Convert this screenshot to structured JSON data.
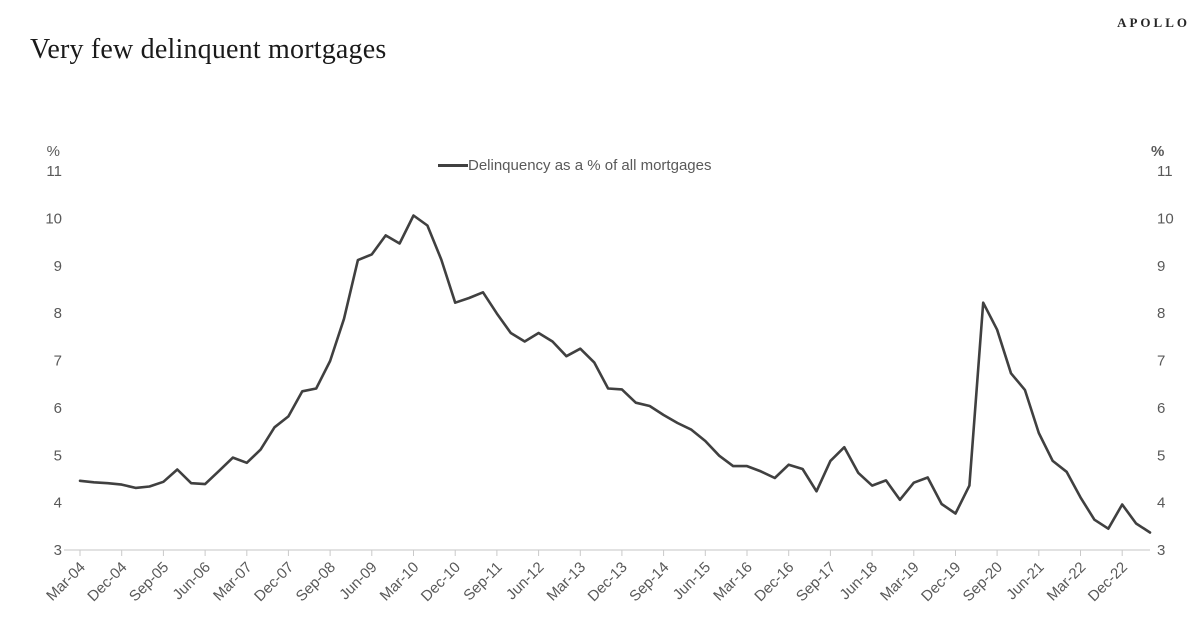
{
  "branding": {
    "logo_text": "APOLLO"
  },
  "header": {
    "title": "Very few delinquent mortgages"
  },
  "legend": {
    "label": "Delinquency as a % of all mortgages"
  },
  "axes": {
    "left_unit_label": "%",
    "right_unit_label": "%",
    "y_ticks": [
      "11",
      "10",
      "9",
      "8",
      "7",
      "6",
      "5",
      "4",
      "3"
    ],
    "x_tick_labels": [
      "Mar-04",
      "Dec-04",
      "Sep-05",
      "Jun-06",
      "Mar-07",
      "Dec-07",
      "Sep-08",
      "Jun-09",
      "Mar-10",
      "Dec-10",
      "Sep-11",
      "Jun-12",
      "Mar-13",
      "Dec-13",
      "Sep-14",
      "Jun-15",
      "Mar-16",
      "Dec-16",
      "Sep-17",
      "Jun-18",
      "Mar-19",
      "Dec-19",
      "Sep-20",
      "Jun-21",
      "Mar-22",
      "Dec-22"
    ],
    "x_tick_every_n_points": 3
  },
  "chart_data": {
    "type": "line",
    "title": "Very few delinquent mortgages",
    "xlabel": "",
    "ylabel": "%",
    "ylim": [
      3,
      11
    ],
    "grid": false,
    "legend_position": "top-center",
    "frequency": "quarterly",
    "start_period": "2004-Q1",
    "end_period": "2023-Q2",
    "series": [
      {
        "name": "Delinquency as a % of all mortgages",
        "color": "#404040",
        "values": [
          4.46,
          4.43,
          4.41,
          4.38,
          4.31,
          4.34,
          4.44,
          4.7,
          4.41,
          4.39,
          4.67,
          4.95,
          4.84,
          5.12,
          5.59,
          5.82,
          6.35,
          6.41,
          6.99,
          7.88,
          9.12,
          9.24,
          9.64,
          9.47,
          10.06,
          9.85,
          9.13,
          8.22,
          8.32,
          8.44,
          7.99,
          7.58,
          7.4,
          7.58,
          7.4,
          7.09,
          7.25,
          6.96,
          6.41,
          6.39,
          6.11,
          6.04,
          5.85,
          5.68,
          5.54,
          5.3,
          4.99,
          4.77,
          4.77,
          4.66,
          4.52,
          4.8,
          4.71,
          4.24,
          4.88,
          5.17,
          4.63,
          4.36,
          4.47,
          4.06,
          4.42,
          4.53,
          3.97,
          3.77,
          4.36,
          8.22,
          7.65,
          6.73,
          6.38,
          5.47,
          4.88,
          4.65,
          4.11,
          3.64,
          3.45,
          3.96,
          3.56,
          3.37
        ]
      }
    ]
  },
  "colors": {
    "line": "#404040",
    "axis_line": "#d9d9d9",
    "tick_mark": "#c9c9c9",
    "axis_text": "#595959",
    "title_text": "#1a1a1a",
    "logo_text": "#262626",
    "background": "#ffffff"
  }
}
